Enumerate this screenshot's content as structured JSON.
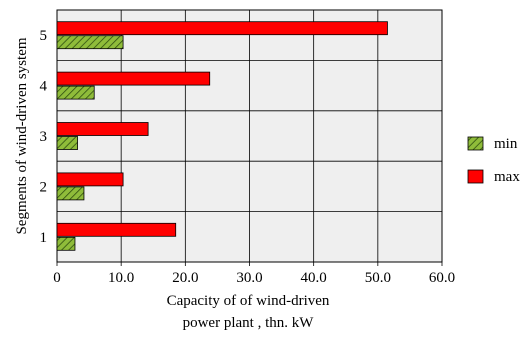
{
  "chart_data": {
    "type": "bar",
    "orientation": "horizontal",
    "categories": [
      "1",
      "2",
      "3",
      "4",
      "5"
    ],
    "series": [
      {
        "name": "min",
        "values": [
          2.8,
          4.2,
          3.2,
          5.8,
          10.3
        ],
        "color": "#8fbc3a",
        "pattern": "diagonal-hatch"
      },
      {
        "name": "max",
        "values": [
          18.5,
          10.3,
          14.2,
          23.8,
          51.5
        ],
        "color": "#ff0000"
      }
    ],
    "xlabel_line1": "Capacity of of wind-driven",
    "xlabel_line2": "power plant , thn. kW",
    "ylabel": "Segments of wind-driven system",
    "xlim": [
      0,
      60
    ],
    "xticks": [
      "0",
      "10.0",
      "20.0",
      "30.0",
      "40.0",
      "50.0",
      "60.0"
    ],
    "grid": true,
    "legend_position": "right"
  }
}
